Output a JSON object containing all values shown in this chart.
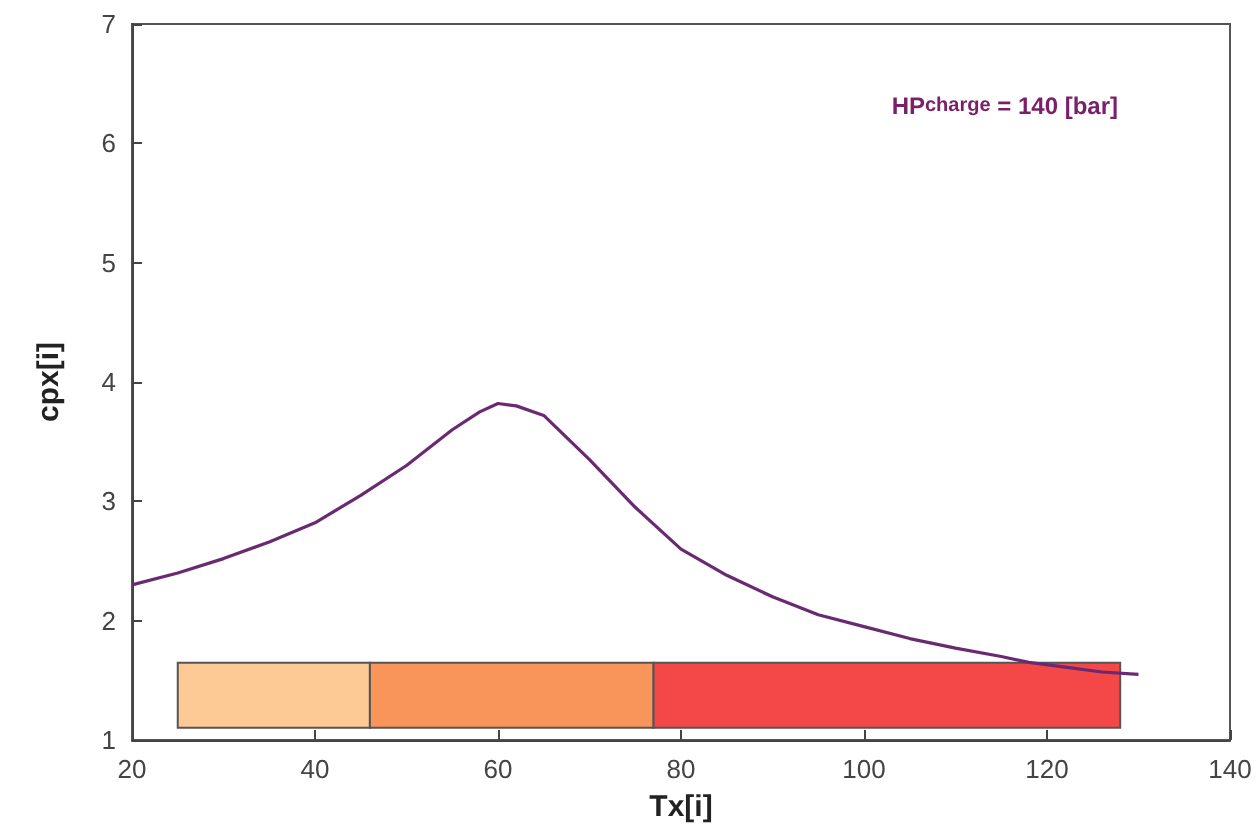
{
  "chart_data": {
    "type": "line",
    "xlabel": "Tx[i]",
    "ylabel": "cpx[i]",
    "annotations": [
      "HP$_{charge}$ = 140 [bar]"
    ],
    "series": [
      {
        "color": "#6a2a72",
        "x": [
          20,
          25,
          30,
          35,
          40,
          45,
          50,
          55,
          58,
          60,
          62,
          65,
          70,
          75,
          80,
          85,
          90,
          95,
          100,
          105,
          110,
          115,
          118,
          122,
          126,
          130
        ],
        "values": [
          2.3,
          2.4,
          2.52,
          2.66,
          2.82,
          3.05,
          3.3,
          3.6,
          3.75,
          3.82,
          3.8,
          3.72,
          3.35,
          2.95,
          2.6,
          2.38,
          2.2,
          2.05,
          1.95,
          1.85,
          1.77,
          1.7,
          1.65,
          1.61,
          1.57,
          1.55
        ]
      }
    ],
    "bands": [
      {
        "axis": "x",
        "from": 25,
        "to": 46,
        "color": "#fdc995"
      },
      {
        "axis": "x",
        "from": 46,
        "to": 77,
        "color": "#f9955a"
      },
      {
        "axis": "x",
        "from": 77,
        "to": 128,
        "color": "#f44848"
      }
    ],
    "xlim": [
      20,
      140
    ],
    "xticks": [
      20,
      40,
      60,
      80,
      100,
      120,
      140
    ],
    "ylim": [
      1,
      7
    ],
    "yticks": [
      1,
      2,
      3,
      4,
      5,
      6,
      7
    ],
    "grid": false,
    "marker": "none",
    "line_style": "solid"
  }
}
